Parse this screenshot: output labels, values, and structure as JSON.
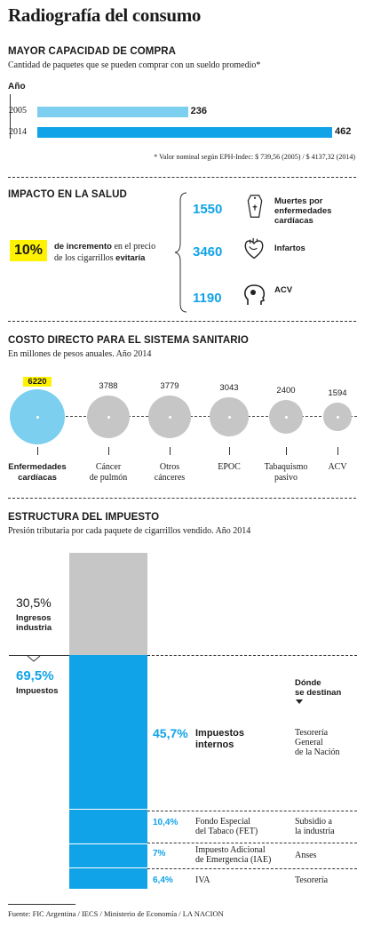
{
  "title": "Radiografía del consumo",
  "purchase": {
    "heading": "MAYOR CAPACIDAD DE COMPRA",
    "subtitle": "Cantidad de paquetes que se pueden comprar con un sueldo promedio*",
    "axis_label": "Año",
    "note": "* Valor nominal según EPH-Indec: $ 739,56 (2005) / $ 4137,32 (2014)"
  },
  "health": {
    "heading": "IMPACTO EN LA SALUD",
    "pct": "10%",
    "desc_bold1": "de incremento",
    "desc_1": " en el precio",
    "desc_2": "de los cigarrillos ",
    "desc_bold2": "evitaría",
    "items": [
      {
        "value": "1550",
        "label_line1": "Muertes por",
        "label_line2": "enfermedades",
        "label_line3": "cardíacas",
        "icon": "coffin-icon"
      },
      {
        "value": "3460",
        "label_line1": "Infartos",
        "label_line2": "",
        "label_line3": "",
        "icon": "heart-icon"
      },
      {
        "value": "1190",
        "label_line1": "ACV",
        "label_line2": "",
        "label_line3": "",
        "icon": "brain-icon"
      }
    ]
  },
  "cost": {
    "heading": "COSTO DIRECTO PARA EL SISTEMA SANITARIO",
    "subtitle": "En millones de pesos anuales. Año 2014"
  },
  "tax": {
    "heading": "ESTRUCTURA DEL IMPUESTO",
    "subtitle": "Presión tributaria por cada paquete de cigarrillos vendido. Año 2014",
    "industry_pct": "30,5%",
    "industry_label1": "Ingresos",
    "industry_label2": "industria",
    "tax_pct": "69,5%",
    "tax_label": "Impuestos",
    "dest_header1": "Dónde",
    "dest_header2": "se destinan",
    "internal_pct": "45,7%",
    "internal_label1": "Impuestos",
    "internal_label2": "internos",
    "rows": [
      {
        "pct": "10,4%",
        "label1": "Fondo Especial",
        "label2": "del Tabaco (FET)",
        "dest1": "Subsidio a",
        "dest2": "la industria"
      },
      {
        "pct": "7%",
        "label1": "Impuesto Adicional",
        "label2": "de Emergencia (IAE)",
        "dest1": "Anses",
        "dest2": ""
      },
      {
        "pct": "6,4%",
        "label1": "IVA",
        "label2": "",
        "dest1": "Tesorería",
        "dest2": ""
      }
    ],
    "internal_dest1": "Tesorería",
    "internal_dest2": "General",
    "internal_dest3": "de la Nación"
  },
  "source": "Fuente: FIC Argentina / IECS / Ministerio de Economía / LA NACION",
  "colors": {
    "blue": "#11a3e8",
    "light_blue": "#7ccfee",
    "gray": "#c6c6c6",
    "yellow": "#fff200"
  },
  "chart_data": [
    {
      "type": "bar",
      "orientation": "horizontal",
      "title": "MAYOR CAPACIDAD DE COMPRA",
      "categories": [
        "2005",
        "2014"
      ],
      "values": [
        236,
        462
      ],
      "xlim": [
        0,
        462
      ]
    },
    {
      "type": "scatter",
      "subtype": "bubble",
      "title": "COSTO DIRECTO PARA EL SISTEMA SANITARIO",
      "categories": [
        "Enfermedades cardíacas",
        "Cáncer de pulmón",
        "Otros cánceres",
        "EPOC",
        "Tabaquismo pasivo",
        "ACV"
      ],
      "values": [
        6220,
        3788,
        3779,
        3043,
        2400,
        1594
      ],
      "value_labels": [
        "6220",
        "3788",
        "3779",
        "3043",
        "2400",
        "1594"
      ]
    },
    {
      "type": "bar",
      "subtype": "stacked",
      "title": "ESTRUCTURA DEL IMPUESTO",
      "categories": [
        "Ingresos industria",
        "Impuestos internos",
        "Fondo Especial del Tabaco (FET)",
        "Impuesto Adicional de Emergencia (IAE)",
        "IVA"
      ],
      "values": [
        30.5,
        45.7,
        10.4,
        7,
        6.4
      ],
      "ylim": [
        0,
        100
      ]
    }
  ]
}
